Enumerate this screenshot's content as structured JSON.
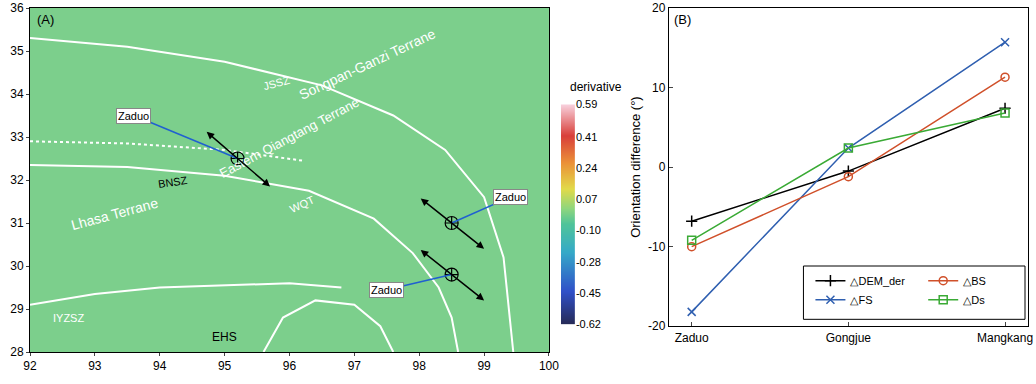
{
  "chart_data": [
    {
      "type": "map",
      "panel_label": "(A)",
      "xlim": [
        92,
        100
      ],
      "xticks": [
        92,
        93,
        94,
        95,
        96,
        97,
        98,
        99,
        100
      ],
      "ylim": [
        28,
        36
      ],
      "yticks": [
        28,
        29,
        30,
        31,
        32,
        33,
        34,
        35,
        36
      ],
      "grid": false,
      "colorbar": {
        "title": "derivative",
        "range": [
          -0.62,
          0.59
        ],
        "ticks": [
          -0.62,
          -0.45,
          -0.28,
          {
            "value": -0.1,
            "label": "-0.10"
          },
          0.07,
          0.24,
          0.41,
          0.59
        ]
      },
      "lines": [
        {
          "x": [
            92,
            93.5,
            95,
            96.5,
            97.6,
            98.4,
            99.0,
            99.3,
            99.45
          ],
          "y": [
            35.3,
            35.1,
            34.75,
            34.2,
            33.5,
            32.7,
            31.6,
            30.2,
            28
          ],
          "color": "#ffffff",
          "line_style": "solid"
        },
        {
          "x": [
            92,
            93.5,
            95,
            96.2
          ],
          "y": [
            32.9,
            32.85,
            32.7,
            32.45
          ],
          "color": "#ffffff",
          "line_style": "dotted"
        },
        {
          "x": [
            92,
            93.5,
            95,
            96.3,
            97.3,
            97.9,
            98.3,
            98.5,
            98.6
          ],
          "y": [
            32.35,
            32.3,
            32.1,
            31.75,
            31.1,
            30.3,
            29.5,
            28.8,
            28
          ],
          "color": "#ffffff",
          "line_style": "solid"
        },
        {
          "x": [
            92,
            93,
            94,
            95,
            96,
            96.8
          ],
          "y": [
            29.1,
            29.35,
            29.5,
            29.55,
            29.6,
            29.5
          ],
          "color": "#ffffff",
          "line_style": "solid"
        },
        {
          "x": [
            95.6,
            95.9,
            96.4,
            97.0,
            97.4,
            97.6
          ],
          "y": [
            28,
            28.8,
            29.2,
            29.1,
            28.6,
            28
          ],
          "color": "#ffffff",
          "line_style": "solid"
        }
      ],
      "labels": [
        {
          "text": "Songpan-Ganzi Terrane",
          "x": 97.2,
          "y": 34.7,
          "color": "#ffffff"
        },
        {
          "text": "Eastern Qiangtang Terrane",
          "x": 96.0,
          "y": 33.0,
          "color": "#ffffff"
        },
        {
          "text": "Lhasa Terrane",
          "x": 93.3,
          "y": 31.2,
          "color": "#ffffff"
        },
        {
          "text": "JSSZ",
          "x": 95.8,
          "y": 34.25,
          "color": "#ffffff"
        },
        {
          "text": "BNSZ",
          "x": 94.2,
          "y": 31.95,
          "color": "#000000"
        },
        {
          "text": "WQT",
          "x": 96.2,
          "y": 31.45,
          "color": "#ffffff"
        },
        {
          "text": "IYZSZ",
          "x": 92.6,
          "y": 28.8,
          "color": "#ffffff"
        },
        {
          "text": "EHS",
          "x": 95.0,
          "y": 28.35,
          "color": "#000000"
        }
      ],
      "profiles": [
        {
          "label": "Zaduo",
          "x": [
            94.7,
            95.7
          ],
          "y": [
            33.15,
            31.85
          ],
          "center": [
            95.2,
            32.5
          ],
          "label_at": [
            93.6,
            33.5
          ]
        },
        {
          "label": "Zaduo",
          "x": [
            98.0,
            99.0
          ],
          "y": [
            31.6,
            30.4
          ],
          "center": [
            98.5,
            31.0
          ],
          "label_at": [
            99.4,
            31.6
          ]
        },
        {
          "label": "Zaduo",
          "x": [
            98.0,
            99.0
          ],
          "y": [
            30.4,
            29.2
          ],
          "center": [
            98.5,
            29.8
          ],
          "label_at": [
            97.5,
            29.45
          ]
        }
      ]
    },
    {
      "type": "line",
      "panel_label": "(B)",
      "y_label": "Orientation difference (°)",
      "categories": [
        "Zaduo",
        "Gongjue",
        "Mangkang"
      ],
      "ylim": [
        -20,
        20
      ],
      "yticks": [
        -20,
        -10,
        0,
        10,
        20
      ],
      "grid": false,
      "legend": "lower right",
      "series": [
        {
          "name": "△DEM_der",
          "color": "#000000",
          "marker": "plus",
          "values": [
            -6.8,
            -0.5,
            7.4
          ]
        },
        {
          "name": "△FS",
          "color": "#2f5fb0",
          "marker": "x",
          "values": [
            -18.2,
            2.4,
            15.7
          ]
        },
        {
          "name": "△BS",
          "color": "#d0502a",
          "marker": "circle-open",
          "values": [
            -10.0,
            -1.2,
            11.3
          ]
        },
        {
          "name": "△Ds",
          "color": "#3aaa35",
          "marker": "square-open",
          "values": [
            -9.2,
            2.4,
            6.8
          ]
        }
      ]
    }
  ]
}
